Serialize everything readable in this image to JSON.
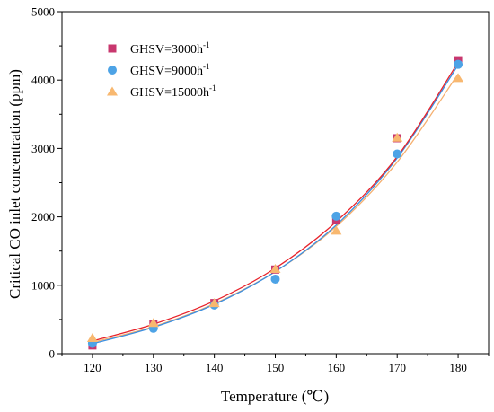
{
  "chart_data": {
    "type": "scatter",
    "xlabel": "Temperature (℃)",
    "ylabel": "Critical CO inlet concentration (ppm)",
    "x": [
      120,
      130,
      140,
      150,
      160,
      170,
      180
    ],
    "xlim": [
      115,
      185
    ],
    "ylim": [
      0,
      5000
    ],
    "xticks": [
      "120",
      "130",
      "140",
      "150",
      "160",
      "170",
      "180"
    ],
    "yticks": [
      "0",
      "1000",
      "2000",
      "3000",
      "4000",
      "5000"
    ],
    "grid": false,
    "legend_position": "top-left",
    "series": [
      {
        "name_base": "GHSV=3000h",
        "name_sup": "-1",
        "marker": "square",
        "color": "#c8376e",
        "fit_color": "#e8222a",
        "values": [
          120,
          430,
          740,
          1230,
          1960,
          3150,
          4290
        ],
        "fit": [
          185,
          430,
          770,
          1250,
          1930,
          2880,
          4260
        ]
      },
      {
        "name_base": "GHSV=9000h",
        "name_sup": "-1",
        "marker": "circle",
        "color": "#4da3e6",
        "fit_color": "#3c8fe0",
        "values": [
          150,
          370,
          710,
          1090,
          2010,
          2920,
          4230
        ],
        "fit": [
          145,
          385,
          720,
          1200,
          1880,
          2860,
          4220
        ]
      },
      {
        "name_base": "GHSV=15000h",
        "name_sup": "-1",
        "marker": "triangle",
        "color": "#f8b870",
        "fit_color": "#f5b070",
        "values": [
          230,
          450,
          740,
          1240,
          1800,
          3160,
          4030
        ],
        "fit": [
          165,
          395,
          730,
          1200,
          1860,
          2800,
          4090
        ]
      }
    ]
  }
}
